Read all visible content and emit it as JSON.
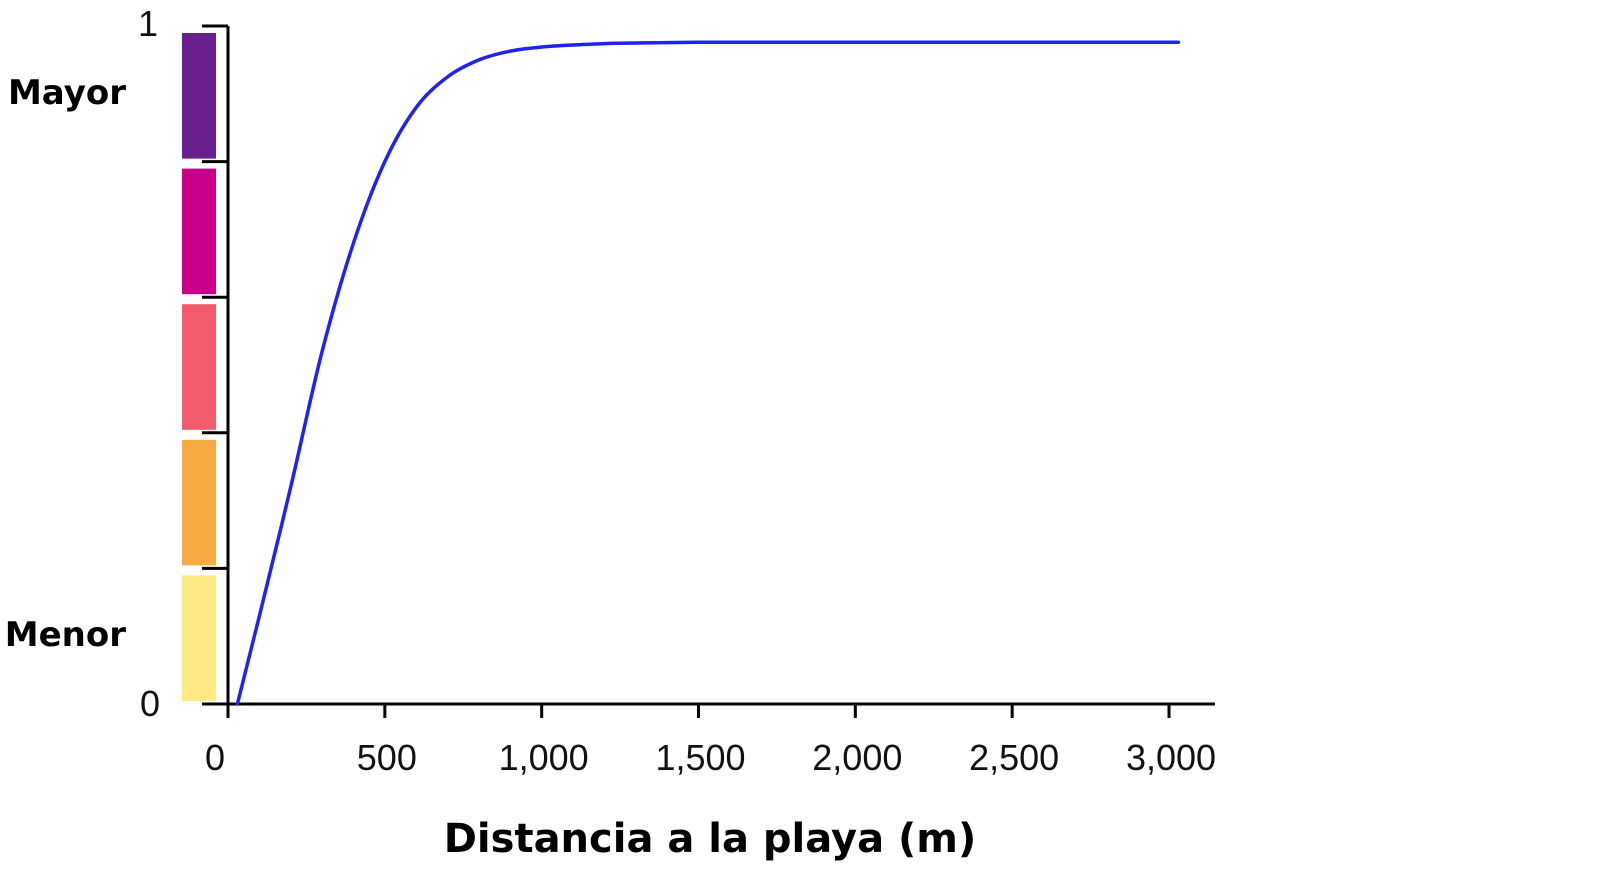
{
  "chart_data": {
    "type": "line",
    "title": "",
    "xlabel": "Distancia a la playa (m)",
    "ylabel": "",
    "xlim": [
      0,
      3000
    ],
    "ylim": [
      0,
      1
    ],
    "x_ticks": [
      0,
      500,
      1000,
      1500,
      2000,
      2500,
      3000
    ],
    "x_tick_labels": [
      "0",
      "500",
      "1,000",
      "1,500",
      "2,000",
      "2,500",
      "3,000"
    ],
    "y_tick_labels": {
      "min": "0",
      "max": "1"
    },
    "level_labels": {
      "high": "Mayor",
      "low": "Menor"
    },
    "color_scale": [
      "#ffe985",
      "#f8ab42",
      "#f25b6b",
      "#c9008a",
      "#6a1f8f"
    ],
    "line_color": "#2222ee",
    "grid": false,
    "series": [
      {
        "x": [
          30,
          100,
          200,
          300,
          400,
          500,
          600,
          700,
          800,
          900,
          1000,
          1100,
          1200,
          1300,
          1500,
          1750,
          2000,
          2500,
          3030
        ],
        "values": [
          0.0,
          0.13,
          0.32,
          0.52,
          0.68,
          0.8,
          0.88,
          0.925,
          0.95,
          0.963,
          0.969,
          0.972,
          0.974,
          0.975,
          0.976,
          0.976,
          0.976,
          0.976,
          0.976
        ]
      }
    ]
  }
}
